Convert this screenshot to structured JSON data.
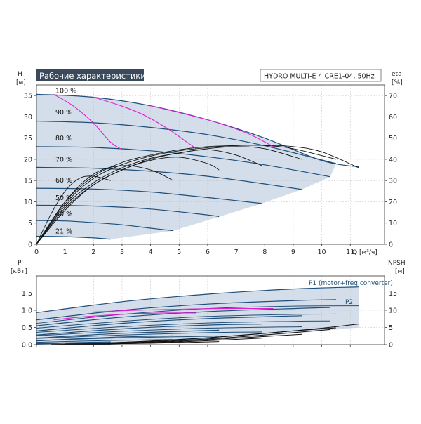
{
  "chart_data": [
    {
      "type": "line",
      "title": "Рабочие характеристики",
      "model_label": "HYDRO MULTI-E 4 CRE1-04, 50Hz",
      "ylabel": "H",
      "yunit": "[м]",
      "ylabel_right": "eta",
      "yunit_right": "[%]",
      "xlabel": "Q",
      "xunit": "[м³/ч]",
      "xlim": [
        0,
        12.2
      ],
      "ylim": [
        0,
        37.5
      ],
      "ylim_right": [
        0,
        75
      ],
      "x_ticks": [
        "0",
        "1",
        "2",
        "3",
        "4",
        "5",
        "6",
        "7",
        "8",
        "9",
        "10",
        "11"
      ],
      "y_ticks": [
        "0",
        "5",
        "10",
        "15",
        "20",
        "25",
        "30",
        "35"
      ],
      "y_right_ticks": [
        "0",
        "10",
        "20",
        "30",
        "40",
        "50",
        "60",
        "70"
      ],
      "speed_labels": [
        {
          "text": "100 %",
          "y": 35.3
        },
        {
          "text": "90 %",
          "y": 30.2
        },
        {
          "text": "80 %",
          "y": 24.1
        },
        {
          "text": "70 %",
          "y": 19.1
        },
        {
          "text": "60 %",
          "y": 14.2
        },
        {
          "text": "50 %",
          "y": 10.1
        },
        {
          "text": "40 %",
          "y": 6.3
        },
        {
          "text": "21 %",
          "y": 2.2
        }
      ],
      "head_curves": [
        {
          "speed": "100 %",
          "x": [
            0,
            2,
            4,
            6,
            8,
            10,
            11.3
          ],
          "y": [
            35.3,
            34.6,
            32.6,
            29.3,
            25.0,
            19.7,
            18.2
          ]
        },
        {
          "speed": "90 %",
          "x": [
            0,
            2,
            4,
            6,
            8,
            10.5
          ],
          "y": [
            29.0,
            28.6,
            27.5,
            25.8,
            23.2,
            19.0
          ]
        },
        {
          "speed": "80 %",
          "x": [
            0,
            2,
            4,
            6,
            8,
            10.3
          ],
          "y": [
            23.0,
            22.8,
            22.0,
            20.6,
            18.7,
            15.9
          ]
        },
        {
          "speed": "70 %",
          "x": [
            0,
            2,
            4,
            6,
            8,
            9.3
          ],
          "y": [
            18.1,
            17.9,
            17.2,
            16.0,
            14.2,
            12.9
          ]
        },
        {
          "speed": "60 %",
          "x": [
            0,
            2,
            4,
            6,
            7.9
          ],
          "y": [
            13.2,
            13.0,
            12.3,
            11.0,
            9.6
          ]
        },
        {
          "speed": "50 %",
          "x": [
            0,
            2,
            4,
            6,
            6.4
          ],
          "y": [
            9.2,
            9.0,
            8.3,
            6.9,
            6.5
          ]
        },
        {
          "speed": "40 %",
          "x": [
            0,
            1,
            2,
            3,
            4,
            4.8
          ],
          "y": [
            5.6,
            5.5,
            5.1,
            4.6,
            3.8,
            3.2
          ]
        },
        {
          "speed": "21 %",
          "x": [
            0,
            1,
            2,
            2.6
          ],
          "y": [
            1.9,
            1.8,
            1.5,
            1.2
          ]
        }
      ],
      "efficiency_curves": [
        {
          "x": [
            0,
            1,
            2,
            3,
            4,
            5,
            6,
            7,
            8,
            9,
            10,
            11.3
          ],
          "y": [
            0,
            20,
            32,
            38.5,
            42,
            44.5,
            46,
            46.5,
            46.7,
            46,
            43.5,
            36
          ]
        },
        {
          "x": [
            0,
            1,
            2,
            3,
            4,
            5,
            6,
            7,
            8,
            9,
            10.5
          ],
          "y": [
            0,
            19,
            31,
            37.5,
            41.5,
            44,
            45.5,
            46.5,
            46.5,
            45,
            40
          ]
        },
        {
          "x": [
            0,
            1,
            2,
            3,
            4,
            5,
            6,
            7,
            8,
            9.3
          ],
          "y": [
            0,
            18,
            29,
            36,
            40.5,
            43,
            45,
            46,
            45,
            40
          ]
        },
        {
          "x": [
            0,
            1,
            2,
            3,
            4,
            5,
            6,
            7,
            7.9
          ],
          "y": [
            0,
            17,
            28,
            35,
            40,
            43,
            44.5,
            42,
            37
          ]
        },
        {
          "x": [
            0,
            1,
            2,
            3,
            4,
            5,
            6,
            6.4
          ],
          "y": [
            0,
            16,
            28,
            35,
            39.5,
            41,
            38,
            35
          ]
        },
        {
          "x": [
            0,
            1,
            2,
            3,
            4,
            4.8
          ],
          "y": [
            0,
            20,
            33,
            37,
            35,
            30
          ]
        },
        {
          "x": [
            0,
            0.5,
            1,
            1.5,
            2,
            2.6
          ],
          "y": [
            0,
            14,
            25,
            31,
            32,
            30
          ]
        }
      ],
      "load_limit_curves": [
        {
          "x": [
            0.6,
            1.3,
            2.0,
            2.6,
            3.0
          ],
          "y": [
            35.3,
            32.5,
            28.5,
            24.0,
            22.3
          ]
        },
        {
          "x": [
            2.0,
            3.0,
            3.8,
            4.6,
            5.2,
            5.6
          ],
          "y": [
            34.6,
            32.5,
            30.3,
            27.2,
            24.4,
            22.5
          ]
        },
        {
          "x": [
            4.0,
            5.0,
            6.0,
            6.8,
            7.5,
            8.3
          ],
          "y": [
            32.6,
            31.0,
            29.3,
            27.6,
            25.8,
            23.0
          ]
        }
      ]
    },
    {
      "type": "line",
      "ylabel": "P",
      "yunit": "[кВт]",
      "ylabel_right": "NPSH",
      "yunit_right": "[м]",
      "xlim": [
        0,
        12.2
      ],
      "ylim": [
        0,
        2.0
      ],
      "ylim_right": [
        0,
        20
      ],
      "y_ticks": [
        "0.0",
        "0.5",
        "1.0",
        "1.5"
      ],
      "y_right_ticks": [
        "0",
        "5",
        "10",
        "15"
      ],
      "series_labels": [
        "P1 (motor+freq.converter)",
        "P2"
      ],
      "power_p1_curves": [
        {
          "speed": "100 %",
          "x": [
            0,
            3,
            6,
            9,
            11.3
          ],
          "y": [
            0.93,
            1.25,
            1.47,
            1.62,
            1.68
          ]
        },
        {
          "speed": "90 %",
          "x": [
            0,
            3,
            6,
            9,
            10.5
          ],
          "y": [
            0.72,
            1.0,
            1.18,
            1.28,
            1.31
          ]
        },
        {
          "speed": "80 %",
          "x": [
            0,
            3,
            6,
            9,
            10.3
          ],
          "y": [
            0.55,
            0.8,
            0.96,
            1.05,
            1.08
          ]
        },
        {
          "speed": "70 %",
          "x": [
            0,
            3,
            6,
            9.3
          ],
          "y": [
            0.4,
            0.62,
            0.76,
            0.84
          ]
        },
        {
          "speed": "60 %",
          "x": [
            0,
            3,
            6,
            7.9
          ],
          "y": [
            0.28,
            0.46,
            0.57,
            0.6
          ]
        },
        {
          "speed": "50 %",
          "x": [
            0,
            3,
            6.4
          ],
          "y": [
            0.19,
            0.33,
            0.42
          ]
        },
        {
          "speed": "40 %",
          "x": [
            0,
            2.5,
            4.8
          ],
          "y": [
            0.11,
            0.21,
            0.26
          ]
        },
        {
          "speed": "21 %",
          "x": [
            0,
            1.3,
            2.6
          ],
          "y": [
            0.03,
            0.06,
            0.08
          ]
        }
      ],
      "power_p2_curves": [
        {
          "speed": "100 %",
          "x": [
            0,
            3,
            6,
            9,
            11.3
          ],
          "y": [
            0.62,
            0.88,
            1.05,
            1.12,
            1.13
          ]
        },
        {
          "speed": "90 %",
          "x": [
            0,
            3,
            6,
            9,
            10.5
          ],
          "y": [
            0.48,
            0.68,
            0.82,
            0.88,
            0.89
          ]
        },
        {
          "speed": "80 %",
          "x": [
            0,
            3,
            6,
            9,
            10.3
          ],
          "y": [
            0.36,
            0.52,
            0.63,
            0.68,
            0.69
          ]
        },
        {
          "speed": "70 %",
          "x": [
            0,
            3,
            6,
            9.3
          ],
          "y": [
            0.26,
            0.39,
            0.48,
            0.52
          ]
        },
        {
          "speed": "60 %",
          "x": [
            0,
            3,
            6,
            7.9
          ],
          "y": [
            0.18,
            0.28,
            0.35,
            0.37
          ]
        },
        {
          "speed": "50 %",
          "x": [
            0,
            3,
            6.4
          ],
          "y": [
            0.12,
            0.2,
            0.25
          ]
        },
        {
          "speed": "40 %",
          "x": [
            0,
            2.5,
            4.8
          ],
          "y": [
            0.07,
            0.12,
            0.15
          ]
        },
        {
          "speed": "21 %",
          "x": [
            0,
            1.3,
            2.6
          ],
          "y": [
            0.02,
            0.04,
            0.05
          ]
        }
      ],
      "power_load_limit_curves": [
        {
          "x": [
            0.6,
            1.5,
            2.5,
            3.5,
            4.5,
            5.6
          ],
          "y": [
            0.72,
            0.8,
            0.86,
            0.9,
            0.92,
            0.92
          ]
        },
        {
          "x": [
            2.0,
            3.5,
            5.0,
            6.5,
            8.3
          ],
          "y": [
            0.95,
            1.0,
            1.03,
            1.05,
            1.05
          ]
        }
      ],
      "npsh_curves": [
        {
          "x": [
            2,
            4,
            6,
            8,
            10,
            11.3
          ],
          "y": [
            0.4,
            1.0,
            2.0,
            3.3,
            4.8,
            6.0
          ]
        },
        {
          "x": [
            1,
            3,
            5,
            7,
            9,
            10.5
          ],
          "y": [
            0.2,
            0.7,
            1.5,
            2.6,
            4.0,
            4.9
          ]
        },
        {
          "x": [
            1,
            3,
            5,
            7,
            9,
            10.3
          ],
          "y": [
            0.1,
            0.5,
            1.2,
            2.2,
            3.5,
            4.4
          ]
        },
        {
          "x": [
            1,
            3,
            5,
            7,
            9.3
          ],
          "y": [
            0.1,
            0.4,
            1.0,
            1.9,
            3.0
          ]
        },
        {
          "x": [
            1,
            3,
            5,
            7.9
          ],
          "y": [
            0.1,
            0.3,
            0.8,
            1.9
          ]
        },
        {
          "x": [
            1,
            3,
            5,
            6.4
          ],
          "y": [
            0.1,
            0.3,
            0.6,
            0.9
          ]
        },
        {
          "x": [
            0.5,
            2,
            3.5,
            4.8
          ],
          "y": [
            0.05,
            0.2,
            0.4,
            0.6
          ]
        },
        {
          "x": [
            0.5,
            1.5,
            2.6
          ],
          "y": [
            0.02,
            0.08,
            0.15
          ]
        }
      ]
    }
  ],
  "colors": {
    "envelope_fill": "#cdd8e6",
    "head_line": "#1f4e79",
    "efficiency_line": "#111111",
    "load_limit_line": "#e020d0",
    "grid": "#bfbfbf",
    "title_bg": "#3a4a5c",
    "title_fg": "#ffffff"
  }
}
